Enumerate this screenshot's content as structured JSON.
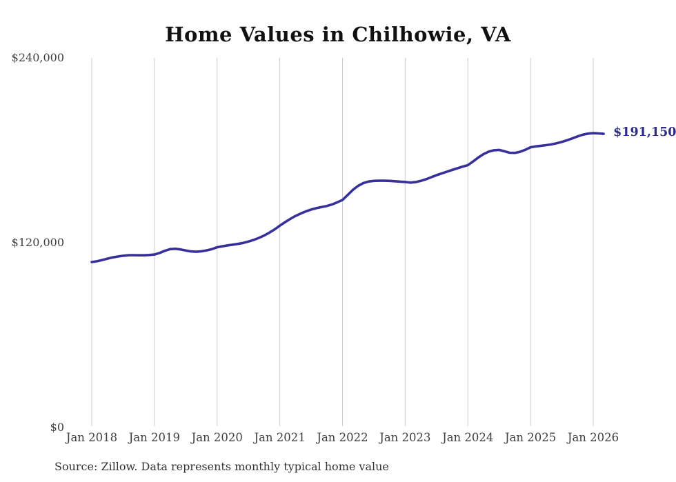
{
  "title": "Home Values in Chilhowie, VA",
  "end_label": "$191,150",
  "source_note": "Source: Zillow. Data represents monthly typical home value",
  "colors": {
    "background": "#ffffff",
    "title_text": "#111111",
    "axis_text": "#3f3f3f",
    "source_text": "#333333",
    "gridline": "#cccccc",
    "line": "#37309b",
    "end_label_text": "#2d2b84"
  },
  "chart_data": {
    "type": "line",
    "title": "Home Values in Chilhowie, VA",
    "xlabel": "",
    "ylabel": "",
    "x_start": "Jan 2018",
    "x_interval": "monthly",
    "x_end": "Mar 2026",
    "x_tick_labels": [
      "Jan 2018",
      "Jan 2019",
      "Jan 2020",
      "Jan 2021",
      "Jan 2022",
      "Jan 2023",
      "Jan 2024",
      "Jan 2025",
      "Jan 2026"
    ],
    "y_ticks": [
      0,
      120000,
      240000
    ],
    "y_tick_labels": [
      "$0",
      "$120,000",
      "$240,000"
    ],
    "ylim": [
      0,
      240000
    ],
    "grid": "vertical-only",
    "legend": "none",
    "end_value": 191150,
    "series": [
      {
        "name": "Typical home value ($)",
        "values": [
          107900,
          108400,
          109200,
          110100,
          110900,
          111500,
          112000,
          112300,
          112400,
          112300,
          112300,
          112500,
          112800,
          113800,
          115200,
          116300,
          116500,
          116100,
          115400,
          114800,
          114600,
          114900,
          115500,
          116300,
          117500,
          118100,
          118700,
          119200,
          119700,
          120300,
          121200,
          122300,
          123600,
          125100,
          127000,
          129100,
          131500,
          133800,
          135900,
          137800,
          139400,
          140800,
          142000,
          142900,
          143600,
          144300,
          145300,
          146700,
          148200,
          151500,
          154800,
          157400,
          159200,
          160200,
          160600,
          160700,
          160700,
          160600,
          160400,
          160100,
          159900,
          159500,
          159800,
          160600,
          161700,
          163000,
          164300,
          165500,
          166600,
          167700,
          168800,
          169900,
          170800,
          173200,
          175800,
          178000,
          179600,
          180500,
          180700,
          179800,
          178900,
          178800,
          179500,
          180800,
          182400,
          183000,
          183400,
          183800,
          184300,
          185000,
          185900,
          187000,
          188200,
          189500,
          190600,
          191300,
          191600,
          191400,
          191150
        ]
      }
    ]
  }
}
